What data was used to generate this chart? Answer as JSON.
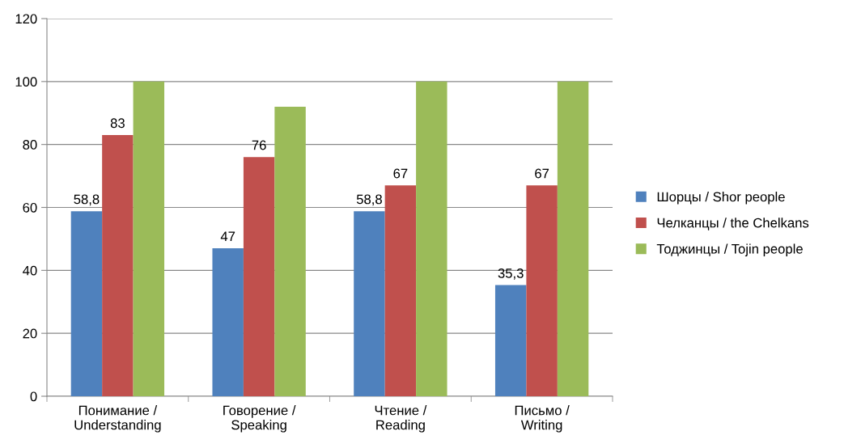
{
  "chart_data": {
    "type": "bar",
    "categories": [
      "Понимание /\nUnderstanding",
      "Говорение /\nSpeaking",
      "Чтение /\nReading",
      "Письмо /\nWriting"
    ],
    "series": [
      {
        "name": "Шорцы / Shor people",
        "color": "#4f81bd",
        "values": [
          58.8,
          47,
          58.8,
          35.3
        ],
        "value_labels": [
          "58,8",
          "47",
          "58,8",
          "35,3"
        ]
      },
      {
        "name": "Челканцы / the Chelkans",
        "color": "#c0504d",
        "values": [
          83,
          76,
          67,
          67
        ],
        "value_labels": [
          "83",
          "76",
          "67",
          "67"
        ]
      },
      {
        "name": "Тоджинцы / Tojin people",
        "color": "#9bbb59",
        "values": [
          100,
          92,
          100,
          100
        ]
      }
    ],
    "ylim": [
      0,
      120
    ],
    "yticks": [
      0,
      20,
      40,
      60,
      80,
      100,
      120
    ],
    "grid": "y",
    "legend": "right"
  }
}
